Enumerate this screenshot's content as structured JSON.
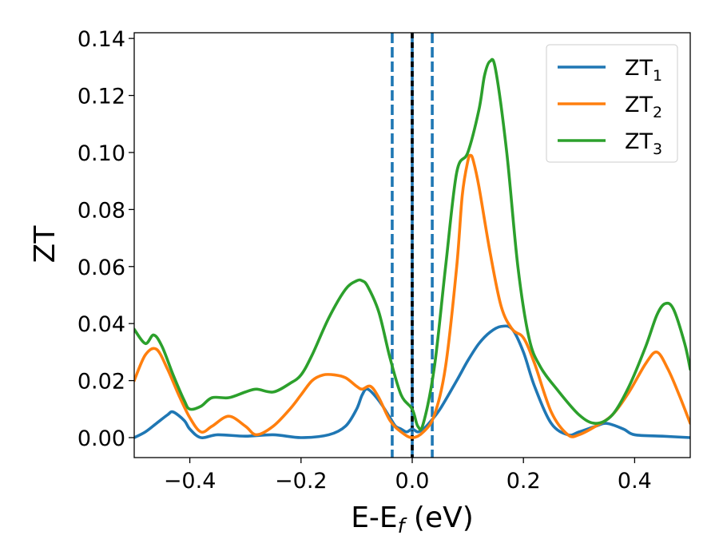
{
  "chart_data": {
    "type": "line",
    "xlabel": "E-E",
    "xlabel_sub": "f",
    "xlabel_unit": " (eV)",
    "ylabel": "ZT",
    "xlim": [
      -0.5,
      0.5
    ],
    "ylim": [
      -0.007,
      0.142
    ],
    "xticks": [
      -0.4,
      -0.2,
      0.0,
      0.2,
      0.4
    ],
    "xtick_labels": [
      "−0.4",
      "−0.2",
      "0.0",
      "0.2",
      "0.4"
    ],
    "yticks": [
      0.0,
      0.02,
      0.04,
      0.06,
      0.08,
      0.1,
      0.12,
      0.14
    ],
    "ytick_labels": [
      "0.00",
      "0.02",
      "0.04",
      "0.06",
      "0.08",
      "0.10",
      "0.12",
      "0.14"
    ],
    "grid": false,
    "legend_position": "top-right",
    "vlines": [
      {
        "x": -0.036,
        "style": "dashed",
        "color": "#1f77b4"
      },
      {
        "x": 0.036,
        "style": "dashed",
        "color": "#1f77b4"
      },
      {
        "x": 0.0,
        "style": "solid",
        "color": "#1f77b4"
      },
      {
        "x": 0.0,
        "style": "dashed",
        "color": "#000000"
      }
    ],
    "series": [
      {
        "name": "ZT",
        "name_sub": "1",
        "color": "#1f77b4",
        "x": [
          -0.5,
          -0.48,
          -0.46,
          -0.44,
          -0.43,
          -0.41,
          -0.4,
          -0.38,
          -0.35,
          -0.3,
          -0.25,
          -0.2,
          -0.15,
          -0.12,
          -0.1,
          -0.09,
          -0.08,
          -0.06,
          -0.04,
          -0.03,
          -0.02,
          -0.01,
          0.0,
          0.01,
          0.02,
          0.03,
          0.05,
          0.08,
          0.1,
          0.12,
          0.14,
          0.16,
          0.18,
          0.2,
          0.22,
          0.25,
          0.28,
          0.3,
          0.33,
          0.35,
          0.38,
          0.4,
          0.45,
          0.5
        ],
        "y": [
          0.0,
          0.002,
          0.005,
          0.008,
          0.009,
          0.006,
          0.003,
          0.0,
          0.001,
          0.0005,
          0.001,
          0.0,
          0.001,
          0.004,
          0.01,
          0.015,
          0.017,
          0.013,
          0.007,
          0.004,
          0.003,
          0.002,
          0.003,
          0.002,
          0.003,
          0.005,
          0.01,
          0.02,
          0.027,
          0.033,
          0.037,
          0.039,
          0.038,
          0.03,
          0.018,
          0.005,
          0.001,
          0.002,
          0.004,
          0.005,
          0.003,
          0.001,
          0.0005,
          0.0
        ]
      },
      {
        "name": "ZT",
        "name_sub": "2",
        "color": "#ff7f0e",
        "x": [
          -0.5,
          -0.48,
          -0.46,
          -0.44,
          -0.42,
          -0.4,
          -0.38,
          -0.36,
          -0.33,
          -0.3,
          -0.28,
          -0.25,
          -0.22,
          -0.2,
          -0.18,
          -0.16,
          -0.14,
          -0.12,
          -0.1,
          -0.09,
          -0.075,
          -0.06,
          -0.04,
          -0.02,
          0.0,
          0.02,
          0.04,
          0.06,
          0.08,
          0.09,
          0.1,
          0.105,
          0.11,
          0.12,
          0.14,
          0.16,
          0.18,
          0.2,
          0.22,
          0.25,
          0.28,
          0.3,
          0.33,
          0.36,
          0.39,
          0.42,
          0.44,
          0.46,
          0.48,
          0.5
        ],
        "y": [
          0.02,
          0.029,
          0.031,
          0.024,
          0.015,
          0.007,
          0.002,
          0.004,
          0.0075,
          0.004,
          0.001,
          0.004,
          0.01,
          0.015,
          0.02,
          0.022,
          0.022,
          0.021,
          0.018,
          0.017,
          0.018,
          0.014,
          0.006,
          0.002,
          0.0,
          0.002,
          0.008,
          0.025,
          0.06,
          0.085,
          0.097,
          0.099,
          0.097,
          0.088,
          0.065,
          0.046,
          0.038,
          0.035,
          0.026,
          0.009,
          0.001,
          0.001,
          0.004,
          0.008,
          0.016,
          0.026,
          0.03,
          0.024,
          0.015,
          0.005
        ]
      },
      {
        "name": "ZT",
        "name_sub": "3",
        "color": "#2ca02c",
        "x": [
          -0.5,
          -0.48,
          -0.465,
          -0.45,
          -0.43,
          -0.41,
          -0.4,
          -0.38,
          -0.36,
          -0.33,
          -0.3,
          -0.28,
          -0.25,
          -0.22,
          -0.2,
          -0.18,
          -0.15,
          -0.12,
          -0.1,
          -0.09,
          -0.08,
          -0.06,
          -0.04,
          -0.02,
          0.0,
          0.01,
          0.02,
          0.04,
          0.06,
          0.08,
          0.1,
          0.12,
          0.13,
          0.14,
          0.15,
          0.17,
          0.19,
          0.21,
          0.23,
          0.26,
          0.3,
          0.33,
          0.36,
          0.39,
          0.42,
          0.44,
          0.455,
          0.47,
          0.49,
          0.5
        ],
        "y": [
          0.038,
          0.033,
          0.036,
          0.032,
          0.022,
          0.013,
          0.01,
          0.011,
          0.014,
          0.014,
          0.016,
          0.017,
          0.016,
          0.019,
          0.022,
          0.029,
          0.042,
          0.052,
          0.055,
          0.055,
          0.053,
          0.044,
          0.028,
          0.015,
          0.01,
          0.004,
          0.005,
          0.025,
          0.06,
          0.093,
          0.1,
          0.115,
          0.127,
          0.132,
          0.129,
          0.1,
          0.06,
          0.035,
          0.025,
          0.017,
          0.008,
          0.005,
          0.008,
          0.018,
          0.032,
          0.043,
          0.047,
          0.045,
          0.033,
          0.024
        ]
      }
    ]
  }
}
